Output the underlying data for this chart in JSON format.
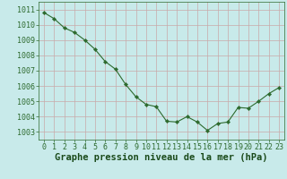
{
  "x": [
    0,
    1,
    2,
    3,
    4,
    5,
    6,
    7,
    8,
    9,
    10,
    11,
    12,
    13,
    14,
    15,
    16,
    17,
    18,
    19,
    20,
    21,
    22,
    23
  ],
  "y": [
    1010.8,
    1010.4,
    1009.8,
    1009.5,
    1009.0,
    1008.4,
    1007.6,
    1007.1,
    1006.1,
    1005.3,
    1004.8,
    1004.65,
    1003.7,
    1003.65,
    1004.0,
    1003.65,
    1003.1,
    1003.55,
    1003.65,
    1004.6,
    1004.55,
    1005.0,
    1005.5,
    1005.9
  ],
  "line_color": "#2d6a2d",
  "marker_color": "#2d6a2d",
  "bg_color": "#c8eaea",
  "grid_color_v": "#c8a8a8",
  "grid_color_h": "#c8a8a8",
  "xlabel": "Graphe pression niveau de la mer (hPa)",
  "xlabel_color": "#1a4a1a",
  "ylim": [
    1002.5,
    1011.5
  ],
  "xlim": [
    -0.5,
    23.5
  ],
  "yticks": [
    1003,
    1004,
    1005,
    1006,
    1007,
    1008,
    1009,
    1010,
    1011
  ],
  "xticks": [
    0,
    1,
    2,
    3,
    4,
    5,
    6,
    7,
    8,
    9,
    10,
    11,
    12,
    13,
    14,
    15,
    16,
    17,
    18,
    19,
    20,
    21,
    22,
    23
  ],
  "tick_fontsize": 6,
  "xlabel_fontsize": 7.5
}
